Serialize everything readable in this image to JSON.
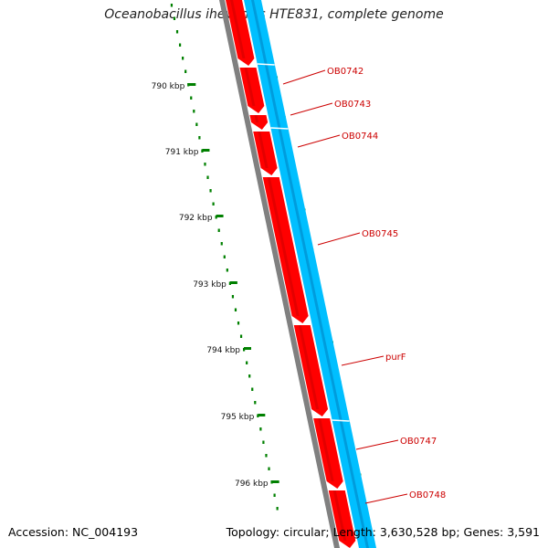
{
  "title": "Oceanobacillus iheyensis HTE831, complete genome",
  "footer": {
    "accession": "Accession: NC_004193",
    "summary": "Topology: circular; Length: 3,630,528 bp; Genes: 3,591"
  },
  "colors": {
    "forward_strand": "#ff0000",
    "reverse_strand": "#00bfff",
    "backbone": "#808080",
    "ruler": "#008000",
    "label": "#cc0000"
  },
  "ruler_labels": [
    "790 kbp",
    "791 kbp",
    "792 kbp",
    "793 kbp",
    "794 kbp",
    "795 kbp",
    "796 kbp"
  ],
  "genes": [
    "OB0742",
    "OB0743",
    "OB0744",
    "OB0745",
    "purF",
    "OB0747",
    "OB0748"
  ]
}
